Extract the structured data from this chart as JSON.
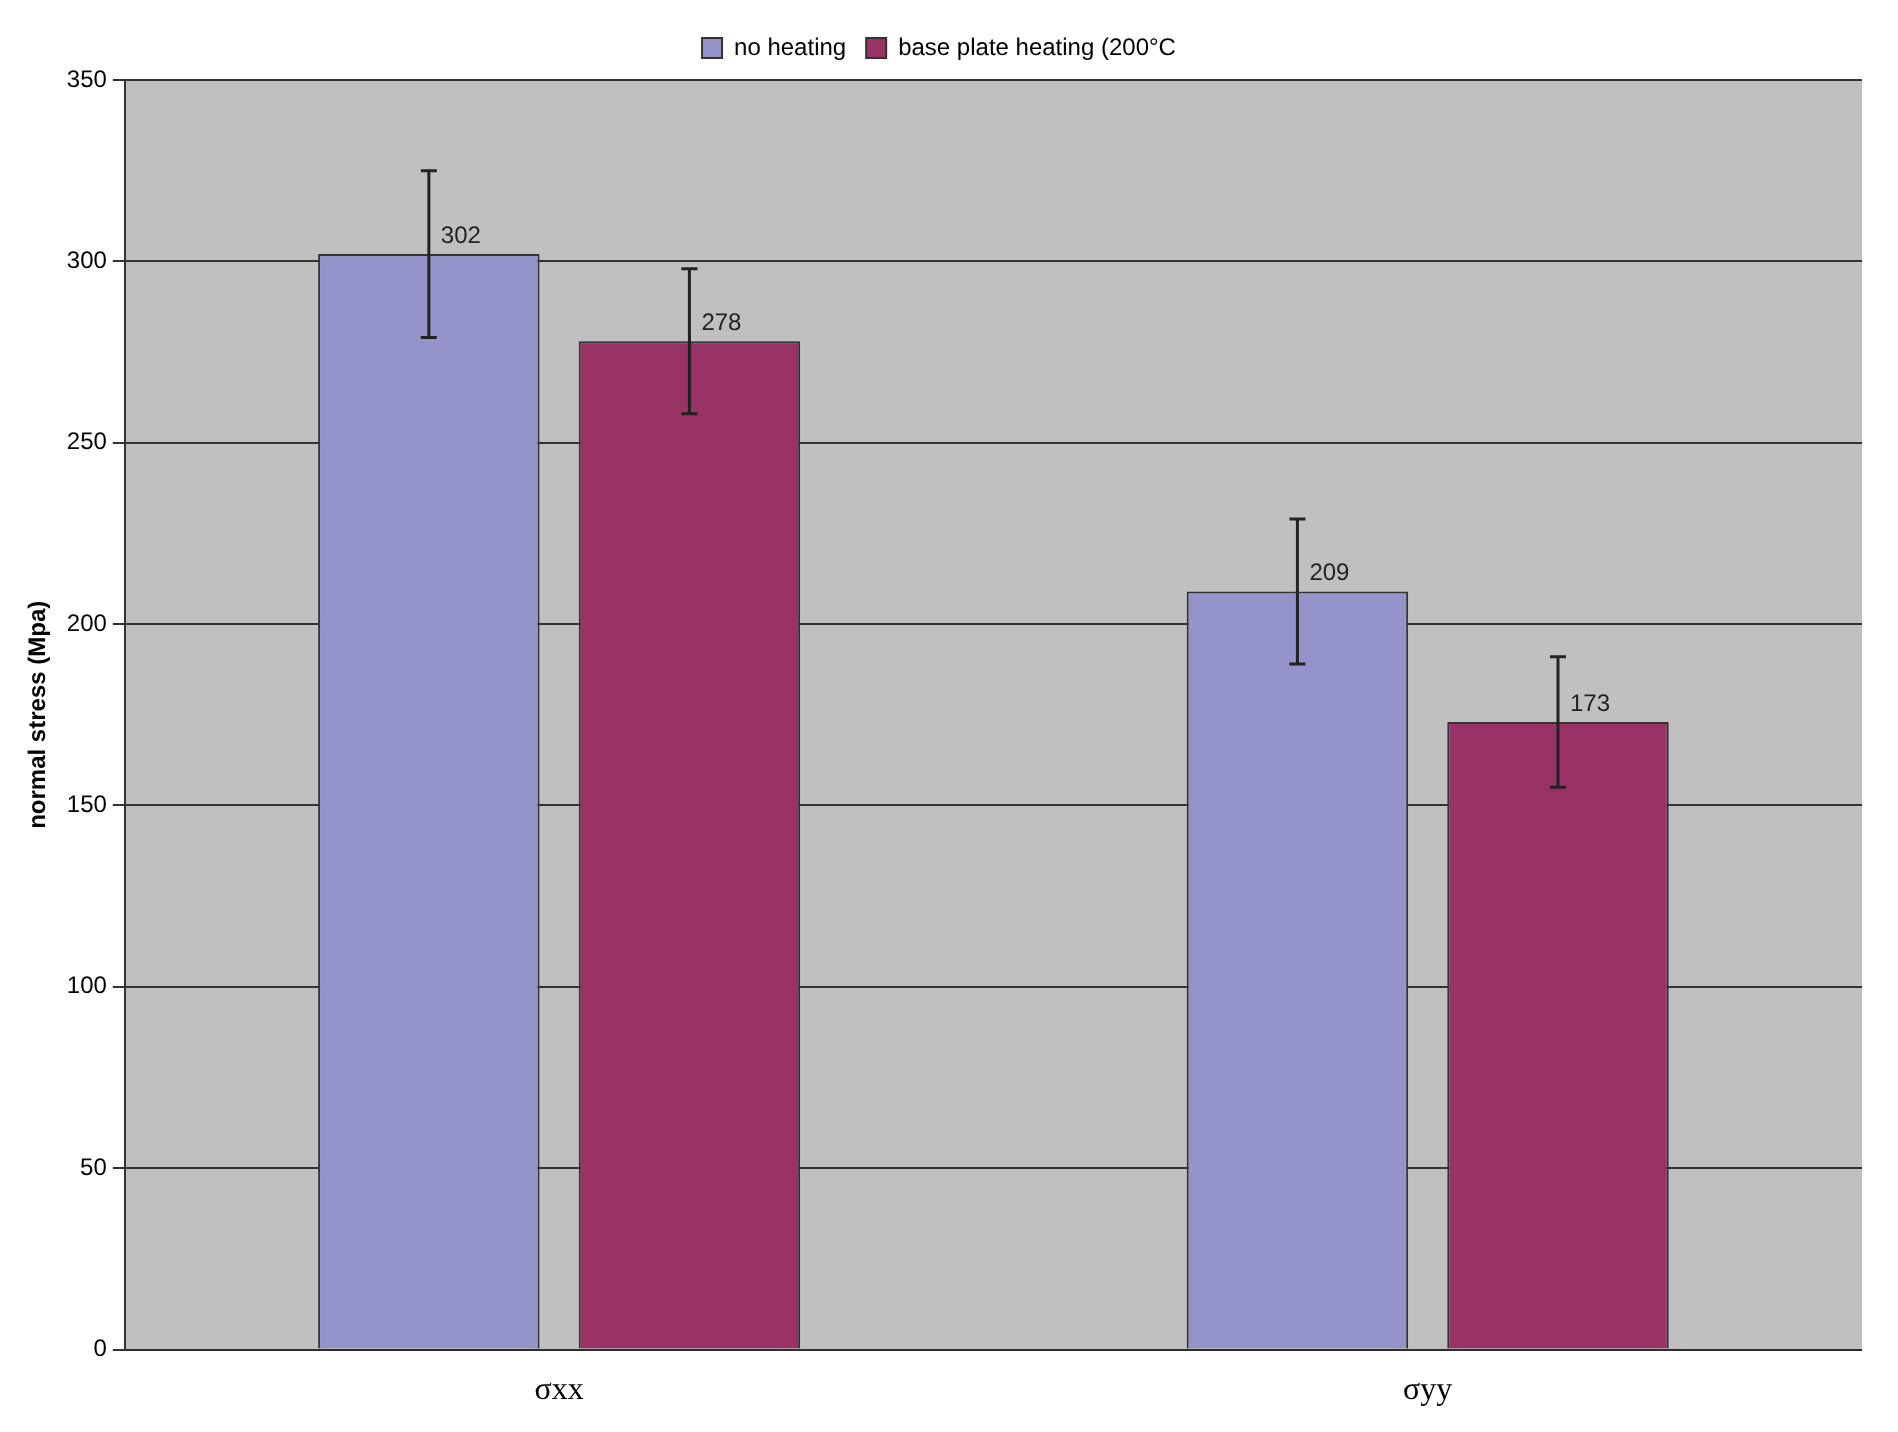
{
  "chart_data": {
    "type": "bar",
    "ylabel": "normal stress (Mpa)",
    "categories": [
      "σxx",
      "σyy"
    ],
    "series": [
      {
        "name": "no heating",
        "color": "#9494cb",
        "values": [
          302,
          209
        ],
        "errors": [
          23,
          20
        ]
      },
      {
        "name": "base plate heating (200°C",
        "color": "#993366",
        "values": [
          278,
          173
        ],
        "errors": [
          20,
          18
        ]
      }
    ],
    "ylim": [
      0,
      350
    ],
    "yticks": [
      0,
      50,
      100,
      150,
      200,
      250,
      300,
      350
    ],
    "grid": "y",
    "legend": "top",
    "data_labels": true
  }
}
